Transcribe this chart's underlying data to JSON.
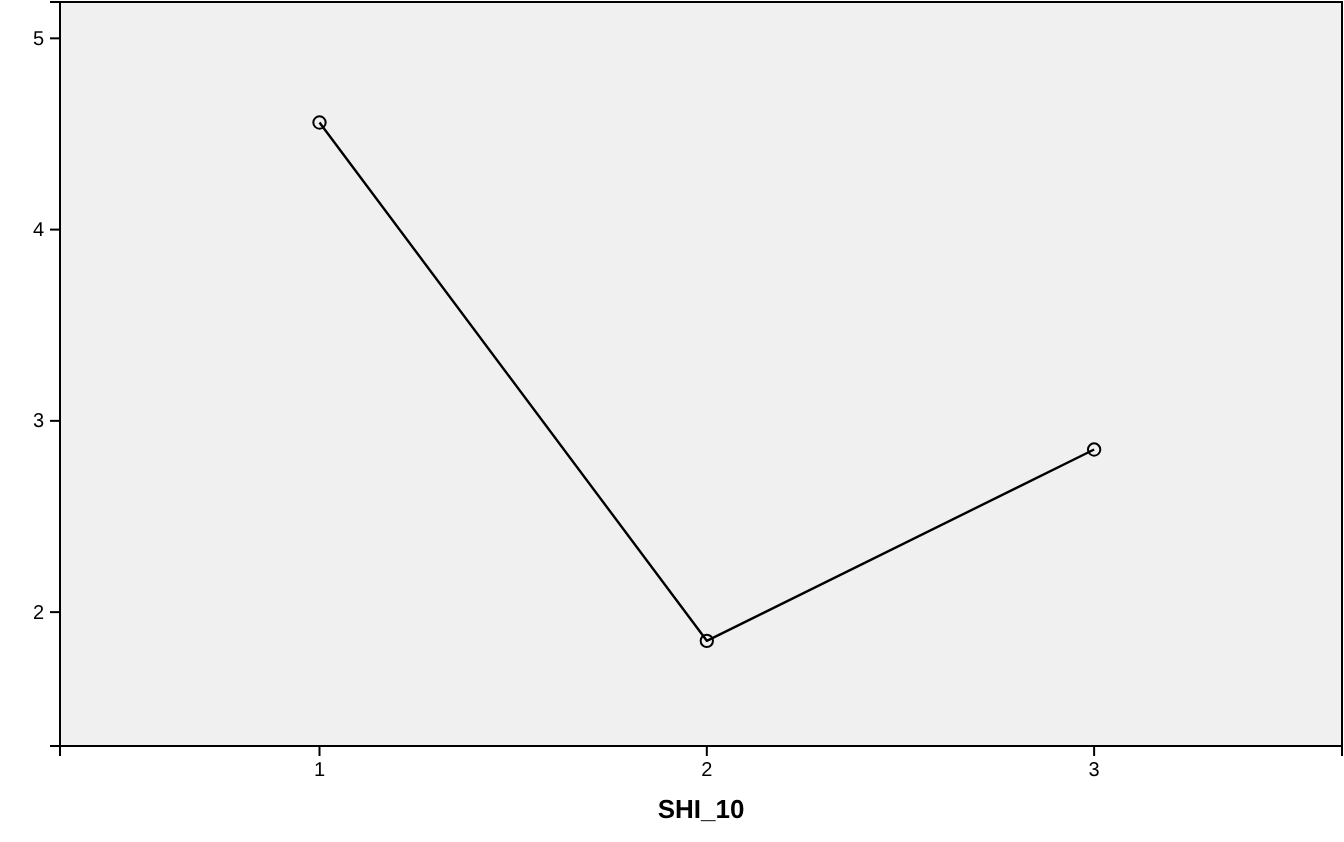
{
  "chart_data": {
    "type": "line",
    "xlabel": "SHI_10",
    "x": [
      1,
      2,
      3
    ],
    "values": [
      4.56,
      1.85,
      2.85
    ],
    "color": "#000000",
    "marker": "circle",
    "line_style": "solid",
    "xlim": [
      0.33,
      3.64
    ],
    "xticks": [
      1,
      2,
      3
    ],
    "ylim": [
      1.3,
      5.19
    ],
    "yticks": [
      2,
      3,
      4,
      5
    ],
    "grid": false
  }
}
